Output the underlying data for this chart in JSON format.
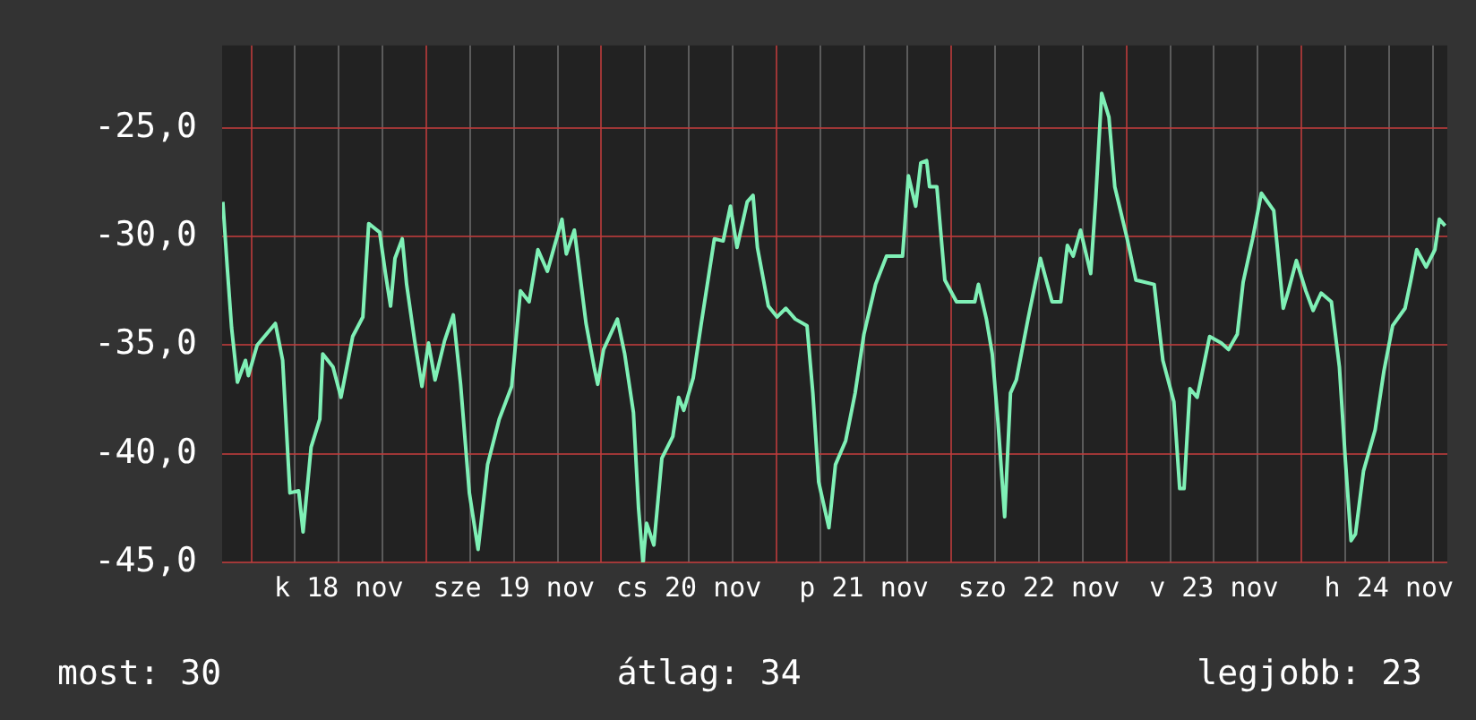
{
  "chart_data": {
    "type": "line",
    "x": [
      "--11-17T20:06",
      "--11-17T20:42",
      "--11-17T21:18",
      "--11-17T22:06",
      "--11-17T23:12",
      "--11-17T23:36",
      "--11-18T00:48",
      "--11-18T03:18",
      "--11-18T04:18",
      "--11-18T05:18",
      "--11-18T06:30",
      "--11-18T07:06",
      "--11-18T08:12",
      "--11-18T09:24",
      "--11-18T09:48",
      "--11-18T11:12",
      "--11-18T12:18",
      "--11-18T13:54",
      "--11-18T15:18",
      "--11-18T16:06",
      "--11-18T17:36",
      "--11-18T18:24",
      "--11-18T19:06",
      "--11-18T19:42",
      "--11-18T20:42",
      "--11-18T21:18",
      "--11-18T22:24",
      "--11-18T23:24",
      "--11-19T00:18",
      "--11-19T01:12",
      "--11-19T02:30",
      "--11-19T03:42",
      "--11-19T04:42",
      "--11-19T05:54",
      "--11-19T07:06",
      "--11-19T08:24",
      "--11-19T10:00",
      "--11-19T11:42",
      "--11-19T12:54",
      "--11-19T14:06",
      "--11-19T15:18",
      "--11-19T16:36",
      "--11-19T18:36",
      "--11-19T19:12",
      "--11-19T20:18",
      "--11-19T21:54",
      "--11-19T23:00",
      "--11-19T23:30",
      "--11-20T00:18",
      "--11-20T02:12",
      "--11-20T03:12",
      "--11-20T04:24",
      "--11-20T05:06",
      "--11-20T05:42",
      "--11-20T06:12",
      "--11-20T07:12",
      "--11-20T08:18",
      "--11-20T09:48",
      "--11-20T10:36",
      "--11-20T11:18",
      "--11-20T12:36",
      "--11-20T13:42",
      "--11-20T15:30",
      "--11-20T16:42",
      "--11-20T17:42",
      "--11-20T18:36",
      "--11-20T20:00",
      "--11-20T20:48",
      "--11-20T21:24",
      "--11-20T22:54",
      "--11-21T00:06",
      "--11-21T01:18",
      "--11-21T02:36",
      "--11-21T04:12",
      "--11-21T05:00",
      "--11-21T05:48",
      "--11-21T07:12",
      "--11-21T08:06",
      "--11-21T09:30",
      "--11-21T10:48",
      "--11-21T12:00",
      "--11-21T13:36",
      "--11-21T15:06",
      "--11-21T17:18",
      "--11-21T18:06",
      "--11-21T19:06",
      "--11-21T19:48",
      "--11-21T20:36",
      "--11-21T21:00",
      "--11-21T22:00",
      "--11-21T23:06",
      "--11-22T00:42",
      "--11-22T03:12",
      "--11-22T03:42",
      "--11-22T04:48",
      "--11-22T05:36",
      "--11-22T06:24",
      "--11-22T07:18",
      "--11-22T08:06",
      "--11-22T08:54",
      "--11-22T10:30",
      "--11-22T12:12",
      "--11-22T13:48",
      "--11-22T15:00",
      "--11-22T15:54",
      "--11-22T16:42",
      "--11-22T17:42",
      "--11-22T19:06",
      "--11-22T19:48",
      "--11-22T20:36",
      "--11-22T21:36",
      "--11-22T22:24",
      "--11-23T00:06",
      "--11-23T01:18",
      "--11-23T03:48",
      "--11-23T05:00",
      "--11-23T06:30",
      "--11-23T07:18",
      "--11-23T07:54",
      "--11-23T08:42",
      "--11-23T09:42",
      "--11-23T11:24",
      "--11-23T13:00",
      "--11-23T14:00",
      "--11-23T15:12",
      "--11-23T16:00",
      "--11-23T17:18",
      "--11-23T18:30",
      "--11-23T20:12",
      "--11-23T21:30",
      "--11-23T22:12",
      "--11-23T23:18",
      "--11-24T00:36",
      "--11-24T01:36",
      "--11-24T02:42",
      "--11-24T04:06",
      "--11-24T05:12",
      "--11-24T06:00",
      "--11-24T06:48",
      "--11-24T07:24",
      "--11-24T08:30",
      "--11-24T10:06",
      "--11-24T11:18",
      "--11-24T12:30",
      "--11-24T14:12",
      "--11-24T15:00",
      "--11-24T15:48",
      "--11-24T17:06",
      "--11-24T18:18",
      "--11-24T18:54",
      "--11-24T19:42"
    ],
    "series": [
      {
        "color": "#7ff0b6",
        "values": [
          -28.4,
          -31.4,
          -34.2,
          -36.7,
          -35.7,
          -36.4,
          -35.0,
          -34.0,
          -35.7,
          -41.8,
          -41.7,
          -43.6,
          -39.7,
          -38.4,
          -35.4,
          -36.0,
          -37.4,
          -34.6,
          -33.7,
          -29.4,
          -29.8,
          -31.7,
          -33.2,
          -31.0,
          -30.1,
          -32.2,
          -34.8,
          -36.9,
          -34.9,
          -36.6,
          -34.8,
          -33.6,
          -36.8,
          -41.8,
          -44.4,
          -40.5,
          -38.4,
          -36.9,
          -32.5,
          -33.0,
          -30.6,
          -31.6,
          -29.2,
          -30.8,
          -29.7,
          -34.0,
          -36.0,
          -36.8,
          -35.2,
          -33.8,
          -35.4,
          -38.1,
          -42.5,
          -45.0,
          -43.2,
          -44.2,
          -40.2,
          -39.2,
          -37.4,
          -38.0,
          -36.5,
          -34.0,
          -30.1,
          -30.2,
          -28.6,
          -30.5,
          -28.4,
          -28.1,
          -30.5,
          -33.2,
          -33.7,
          -33.3,
          -33.8,
          -34.1,
          -37.2,
          -41.3,
          -43.4,
          -40.5,
          -39.4,
          -37.2,
          -34.5,
          -32.2,
          -30.9,
          -30.9,
          -27.2,
          -28.6,
          -26.6,
          -26.5,
          -27.7,
          -27.7,
          -32.0,
          -33.0,
          -33.0,
          -32.2,
          -33.8,
          -35.4,
          -38.6,
          -42.9,
          -37.2,
          -36.6,
          -33.8,
          -31.0,
          -33.0,
          -33.0,
          -30.4,
          -30.9,
          -29.7,
          -31.7,
          -28.2,
          -23.4,
          -24.5,
          -27.7,
          -30.1,
          -32.0,
          -32.2,
          -35.7,
          -37.6,
          -41.6,
          -41.6,
          -37.0,
          -37.4,
          -34.6,
          -34.9,
          -35.2,
          -34.5,
          -32.1,
          -30.1,
          -28.0,
          -28.8,
          -33.3,
          -32.5,
          -31.1,
          -32.5,
          -33.4,
          -32.6,
          -33.0,
          -36.0,
          -40.2,
          -44.0,
          -43.7,
          -40.8,
          -38.9,
          -36.2,
          -34.1,
          -33.3,
          -32.0,
          -30.6,
          -31.4,
          -30.6,
          -29.2,
          -29.5
        ]
      }
    ],
    "xlim": [
      "--11-17T20:00",
      "--11-24T20:00"
    ],
    "xticks": [
      {
        "value": "--11-18T00:00",
        "label": null
      },
      {
        "value": "--11-18T06:00",
        "label": null
      },
      {
        "value": "--11-18T12:00",
        "label": "k 18 nov"
      },
      {
        "value": "--11-18T18:00",
        "label": null
      },
      {
        "value": "--11-19T00:00",
        "label": null
      },
      {
        "value": "--11-19T06:00",
        "label": null
      },
      {
        "value": "--11-19T12:00",
        "label": "sze 19 nov"
      },
      {
        "value": "--11-19T18:00",
        "label": null
      },
      {
        "value": "--11-20T00:00",
        "label": null
      },
      {
        "value": "--11-20T06:00",
        "label": null
      },
      {
        "value": "--11-20T12:00",
        "label": "cs 20 nov"
      },
      {
        "value": "--11-20T18:00",
        "label": null
      },
      {
        "value": "--11-21T00:00",
        "label": null
      },
      {
        "value": "--11-21T06:00",
        "label": null
      },
      {
        "value": "--11-21T12:00",
        "label": "p 21 nov"
      },
      {
        "value": "--11-21T18:00",
        "label": null
      },
      {
        "value": "--11-22T00:00",
        "label": null
      },
      {
        "value": "--11-22T06:00",
        "label": null
      },
      {
        "value": "--11-22T12:00",
        "label": "szo 22 nov"
      },
      {
        "value": "--11-22T18:00",
        "label": null
      },
      {
        "value": "--11-23T00:00",
        "label": null
      },
      {
        "value": "--11-23T06:00",
        "label": null
      },
      {
        "value": "--11-23T12:00",
        "label": "v 23 nov"
      },
      {
        "value": "--11-23T18:00",
        "label": null
      },
      {
        "value": "--11-24T00:00",
        "label": null
      },
      {
        "value": "--11-24T06:00",
        "label": null
      },
      {
        "value": "--11-24T12:00",
        "label": "h 24 nov"
      },
      {
        "value": "--11-24T18:00",
        "label": null
      }
    ],
    "ylim": [
      -45,
      -21.2
    ],
    "yticks": [
      {
        "value": -45,
        "label": "-45,0"
      },
      {
        "value": -40,
        "label": "-40,0"
      },
      {
        "value": -35,
        "label": "-35,0"
      },
      {
        "value": -30,
        "label": "-30,0"
      },
      {
        "value": -25,
        "label": "-25,0"
      }
    ],
    "grid": true,
    "legend": false,
    "marker": "none",
    "line_style": "solid",
    "annotations": [
      "most: 30",
      "átlag: 34",
      "legjobb: 23"
    ]
  }
}
